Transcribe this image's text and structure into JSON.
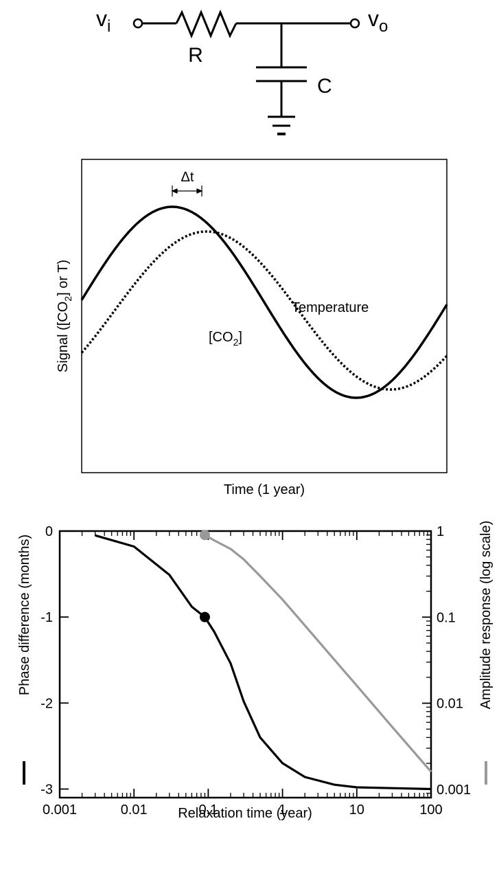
{
  "circuit": {
    "input_label": "v",
    "input_sub": "i",
    "output_label": "v",
    "output_sub": "o",
    "resistor_label": "R",
    "capacitor_label": "C"
  },
  "signal_plot": {
    "delta_label": "Δt",
    "ylabel_prefix": "Signal ([CO",
    "ylabel_sub": "2",
    "ylabel_suffix": "] or T)",
    "xlabel": "Time (1 year)",
    "temperature_label": "Temperature",
    "co2_prefix": "[CO",
    "co2_sub": "2",
    "co2_suffix": "]"
  },
  "chart_data": {
    "type": "line",
    "xlabel": "Relaxation time (year)",
    "ylabel_left": "Phase difference (months)",
    "ylabel_right": "Amplitude response (log scale)",
    "x_scale": "log",
    "xlim": [
      0.001,
      100
    ],
    "x_ticks": [
      0.001,
      0.01,
      0.1,
      1,
      10,
      100
    ],
    "x_tick_labels": [
      "0.001",
      "0.01",
      "0.1",
      "1",
      "10",
      "100"
    ],
    "ylim_left": [
      -3.1,
      0
    ],
    "y_ticks_left": [
      0,
      -1,
      -2,
      -3
    ],
    "y_tick_labels_left": [
      "0",
      "-1",
      "-2",
      "-3"
    ],
    "ylim_right": [
      0.0008,
      1
    ],
    "y_ticks_right": [
      1,
      0.1,
      0.01,
      0.001
    ],
    "y_tick_labels_right": [
      "1",
      "0.1",
      "0.01",
      "0.001"
    ],
    "series": [
      {
        "name": "Phase difference",
        "axis": "left",
        "color": "#000000",
        "x": [
          0.003,
          0.01,
          0.03,
          0.06,
          0.09,
          0.12,
          0.2,
          0.3,
          0.5,
          1,
          2,
          5,
          10,
          30,
          100
        ],
        "y": [
          -0.05,
          -0.18,
          -0.51,
          -0.88,
          -1.0,
          -1.17,
          -1.54,
          -1.98,
          -2.4,
          -2.7,
          -2.86,
          -2.95,
          -2.98,
          -2.99,
          -3.0
        ]
      },
      {
        "name": "Amplitude response",
        "axis": "right",
        "color": "#999999",
        "x": [
          0.09,
          0.12,
          0.2,
          0.3,
          0.5,
          1,
          2,
          5,
          10,
          30,
          100
        ],
        "y": [
          0.9,
          0.78,
          0.62,
          0.47,
          0.3,
          0.16,
          0.08,
          0.032,
          0.016,
          0.0053,
          0.0016
        ]
      }
    ],
    "markers": [
      {
        "x": 0.09,
        "y": -1.0,
        "axis": "left",
        "color": "#000000"
      },
      {
        "x": 0.09,
        "y": 0.9,
        "axis": "right",
        "color": "#999999"
      }
    ]
  }
}
